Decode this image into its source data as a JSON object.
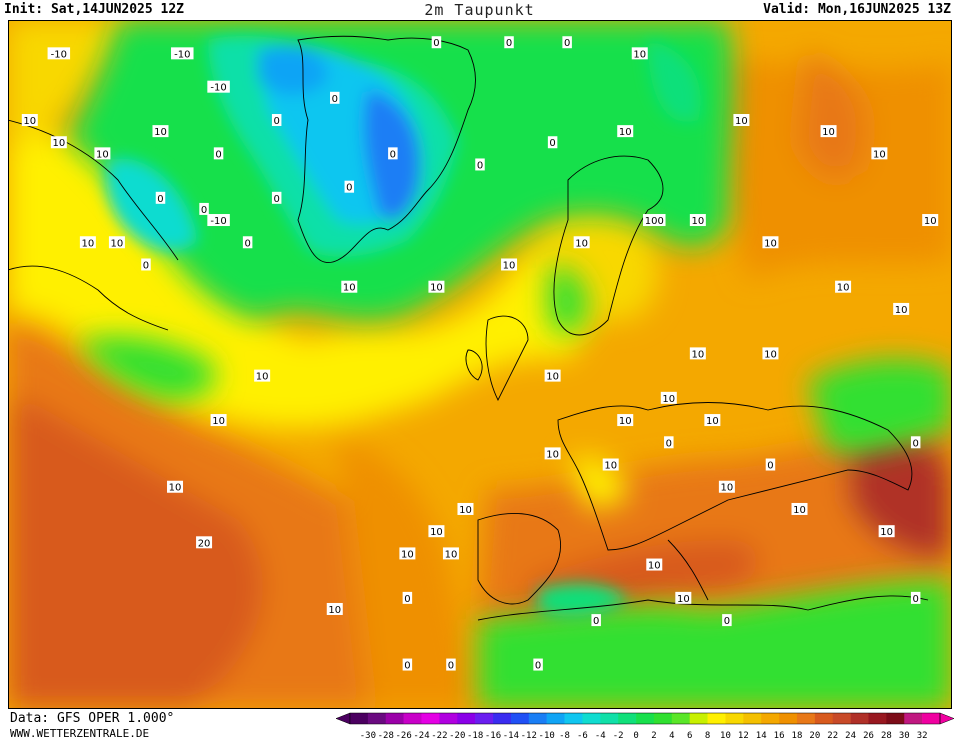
{
  "header": {
    "init": "Init: Sat,14JUN2025 12Z",
    "title": "2m Taupunkt",
    "valid": "Valid: Mon,16JUN2025 13Z"
  },
  "footer": {
    "data_source": "Data: GFS OPER 1.000°",
    "website": "WWW.WETTERZENTRALE.DE"
  },
  "legend": {
    "ticks": [
      "-30",
      "-28",
      "-26",
      "-24",
      "-22",
      "-20",
      "-18",
      "-16",
      "-14",
      "-12",
      "-10",
      "-8",
      "-6",
      "-4",
      "-2",
      "0",
      "2",
      "4",
      "6",
      "8",
      "10",
      "12",
      "14",
      "16",
      "18",
      "20",
      "22",
      "24",
      "26",
      "28",
      "30",
      "32"
    ],
    "colors": [
      "#4b0060",
      "#6a0a80",
      "#9a00a8",
      "#c800c8",
      "#e400e4",
      "#b000e0",
      "#8a00e8",
      "#6a1ef0",
      "#3a2cf0",
      "#2050f5",
      "#1a7ef5",
      "#10a4f5",
      "#10c6f0",
      "#10dcd0",
      "#10e0a8",
      "#10e07a",
      "#18e04c",
      "#30e030",
      "#5ae628",
      "#c8f000",
      "#fff000",
      "#f8d800",
      "#f4c000",
      "#f4a800",
      "#ef9000",
      "#e87818",
      "#d85a1e",
      "#c84a28",
      "#b03028",
      "#981820",
      "#7c0c18",
      "#c01880",
      "#f000a0"
    ]
  },
  "contour_labels": [
    {
      "text": "10",
      "lon": -62,
      "lat": 73
    },
    {
      "text": "10",
      "lon": -58,
      "lat": 71
    },
    {
      "text": "10",
      "lon": -52,
      "lat": 70
    },
    {
      "text": "10",
      "lon": -44,
      "lat": 72
    },
    {
      "text": "0",
      "lon": -20,
      "lat": 75
    },
    {
      "text": "0",
      "lon": -6,
      "lat": 80
    },
    {
      "text": "0",
      "lon": 4,
      "lat": 80
    },
    {
      "text": "0",
      "lon": 12,
      "lat": 80
    },
    {
      "text": "10",
      "lon": 22,
      "lat": 79
    },
    {
      "text": "-10",
      "lon": -58,
      "lat": 79
    },
    {
      "text": "-10",
      "lon": -41,
      "lat": 79
    },
    {
      "text": "-10",
      "lon": -36,
      "lat": 76
    },
    {
      "text": "10",
      "lon": -54,
      "lat": 62
    },
    {
      "text": "0",
      "lon": -44,
      "lat": 66
    },
    {
      "text": "0",
      "lon": -38,
      "lat": 65
    },
    {
      "text": "0",
      "lon": -28,
      "lat": 66
    },
    {
      "text": "0",
      "lon": -18,
      "lat": 67
    },
    {
      "text": "0",
      "lon": -36,
      "lat": 70
    },
    {
      "text": "-10",
      "lon": -36,
      "lat": 64
    },
    {
      "text": "0",
      "lon": -28,
      "lat": 73
    },
    {
      "text": "0",
      "lon": -12,
      "lat": 70
    },
    {
      "text": "0",
      "lon": 0,
      "lat": 69
    },
    {
      "text": "0",
      "lon": 10,
      "lat": 71
    },
    {
      "text": "10",
      "lon": 20,
      "lat": 72
    },
    {
      "text": "10",
      "lon": 36,
      "lat": 73
    },
    {
      "text": "10",
      "lon": 48,
      "lat": 72
    },
    {
      "text": "10",
      "lon": 55,
      "lat": 70
    },
    {
      "text": "10",
      "lon": 62,
      "lat": 64
    },
    {
      "text": "10",
      "lon": -50,
      "lat": 62
    },
    {
      "text": "0",
      "lon": -46,
      "lat": 60
    },
    {
      "text": "0",
      "lon": -32,
      "lat": 62
    },
    {
      "text": "10",
      "lon": -18,
      "lat": 58
    },
    {
      "text": "10",
      "lon": -6,
      "lat": 58
    },
    {
      "text": "10",
      "lon": 4,
      "lat": 60
    },
    {
      "text": "10",
      "lon": 14,
      "lat": 62
    },
    {
      "text": "100",
      "lon": 24,
      "lat": 64
    },
    {
      "text": "10",
      "lon": 30,
      "lat": 64
    },
    {
      "text": "10",
      "lon": 40,
      "lat": 62
    },
    {
      "text": "10",
      "lon": 50,
      "lat": 58
    },
    {
      "text": "10",
      "lon": 58,
      "lat": 56
    },
    {
      "text": "10",
      "lon": 30,
      "lat": 52
    },
    {
      "text": "10",
      "lon": 40,
      "lat": 52
    },
    {
      "text": "10",
      "lon": -30,
      "lat": 50
    },
    {
      "text": "10",
      "lon": -36,
      "lat": 46
    },
    {
      "text": "10",
      "lon": -42,
      "lat": 40
    },
    {
      "text": "20",
      "lon": -38,
      "lat": 35
    },
    {
      "text": "10",
      "lon": 10,
      "lat": 50
    },
    {
      "text": "10",
      "lon": 20,
      "lat": 46
    },
    {
      "text": "10",
      "lon": 26,
      "lat": 48
    },
    {
      "text": "10",
      "lon": 32,
      "lat": 46
    },
    {
      "text": "10",
      "lon": 10,
      "lat": 43
    },
    {
      "text": "10",
      "lon": 18,
      "lat": 42
    },
    {
      "text": "0",
      "lon": 26,
      "lat": 44
    },
    {
      "text": "10",
      "lon": 34,
      "lat": 40
    },
    {
      "text": "0",
      "lon": 40,
      "lat": 42
    },
    {
      "text": "10",
      "lon": 44,
      "lat": 38
    },
    {
      "text": "10",
      "lon": -2,
      "lat": 38
    },
    {
      "text": "10",
      "lon": -6,
      "lat": 36
    },
    {
      "text": "10",
      "lon": -10,
      "lat": 34
    },
    {
      "text": "10",
      "lon": -4,
      "lat": 34
    },
    {
      "text": "0",
      "lon": -10,
      "lat": 30
    },
    {
      "text": "10",
      "lon": 24,
      "lat": 33
    },
    {
      "text": "10",
      "lon": 28,
      "lat": 30
    },
    {
      "text": "0",
      "lon": 34,
      "lat": 28
    },
    {
      "text": "0",
      "lon": 16,
      "lat": 28
    },
    {
      "text": "0",
      "lon": 8,
      "lat": 24
    },
    {
      "text": "0",
      "lon": -4,
      "lat": 24
    },
    {
      "text": "0",
      "lon": -10,
      "lat": 24
    },
    {
      "text": "10",
      "lon": -20,
      "lat": 29
    },
    {
      "text": "0",
      "lon": 60,
      "lat": 30
    },
    {
      "text": "0",
      "lon": 60,
      "lat": 44
    },
    {
      "text": "10",
      "lon": 56,
      "lat": 36
    }
  ]
}
